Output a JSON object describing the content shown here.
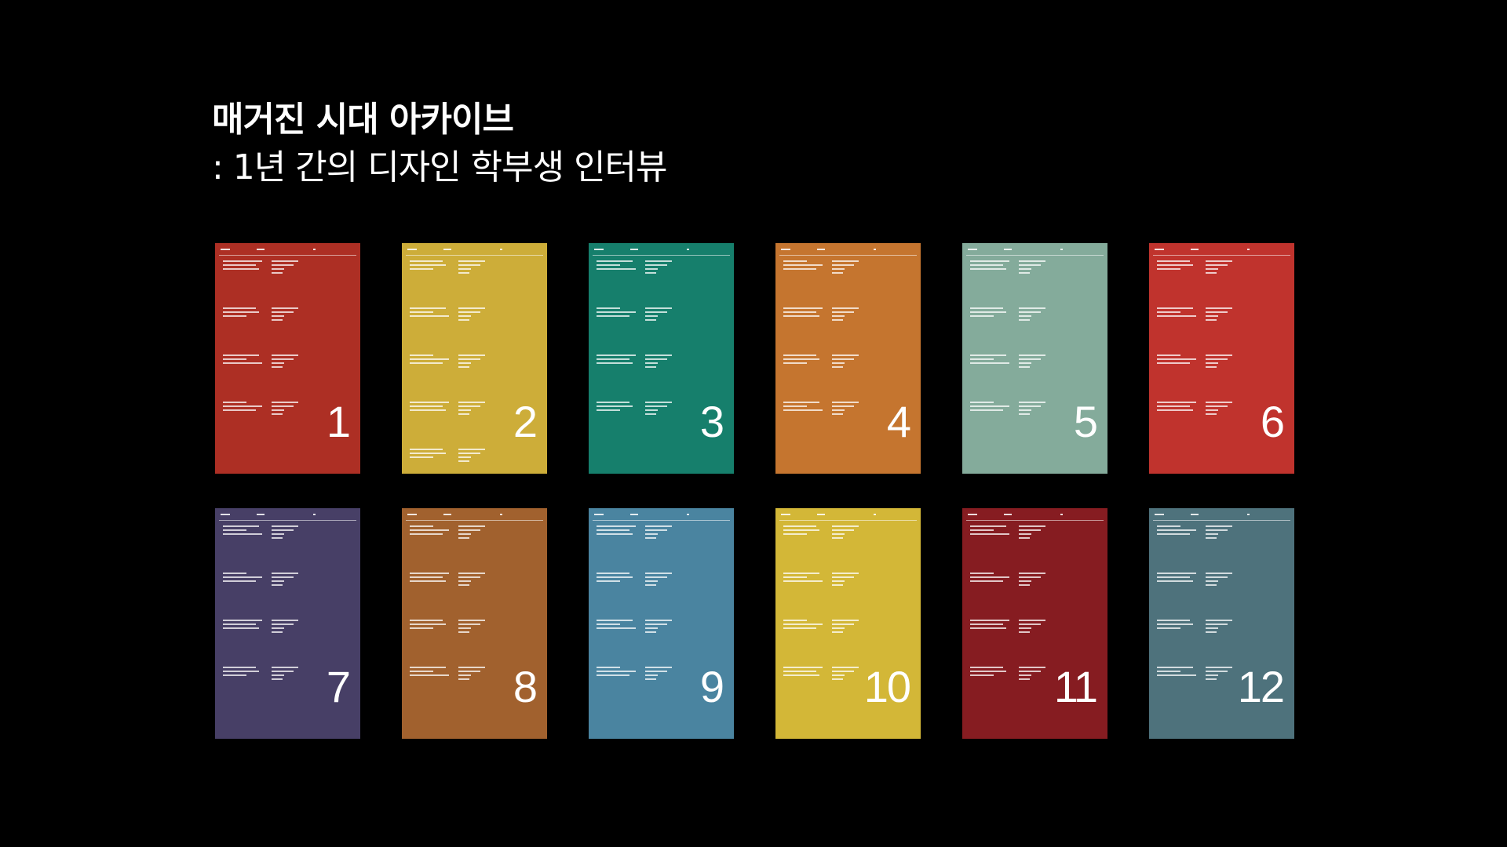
{
  "title": {
    "line1": "매거진 시대 아카이브",
    "line2": ": 1년 간의 디자인 학부생 인터뷰"
  },
  "issues": [
    {
      "number": "1",
      "color": "#ad2f24"
    },
    {
      "number": "2",
      "color": "#cdad39"
    },
    {
      "number": "3",
      "color": "#167f6c"
    },
    {
      "number": "4",
      "color": "#c5752f"
    },
    {
      "number": "5",
      "color": "#84ab9b"
    },
    {
      "number": "6",
      "color": "#c0332d"
    },
    {
      "number": "7",
      "color": "#473f66"
    },
    {
      "number": "8",
      "color": "#a1612e"
    },
    {
      "number": "9",
      "color": "#4a84a0"
    },
    {
      "number": "10",
      "color": "#d3b737"
    },
    {
      "number": "11",
      "color": "#861c21"
    },
    {
      "number": "12",
      "color": "#4e727c"
    }
  ]
}
